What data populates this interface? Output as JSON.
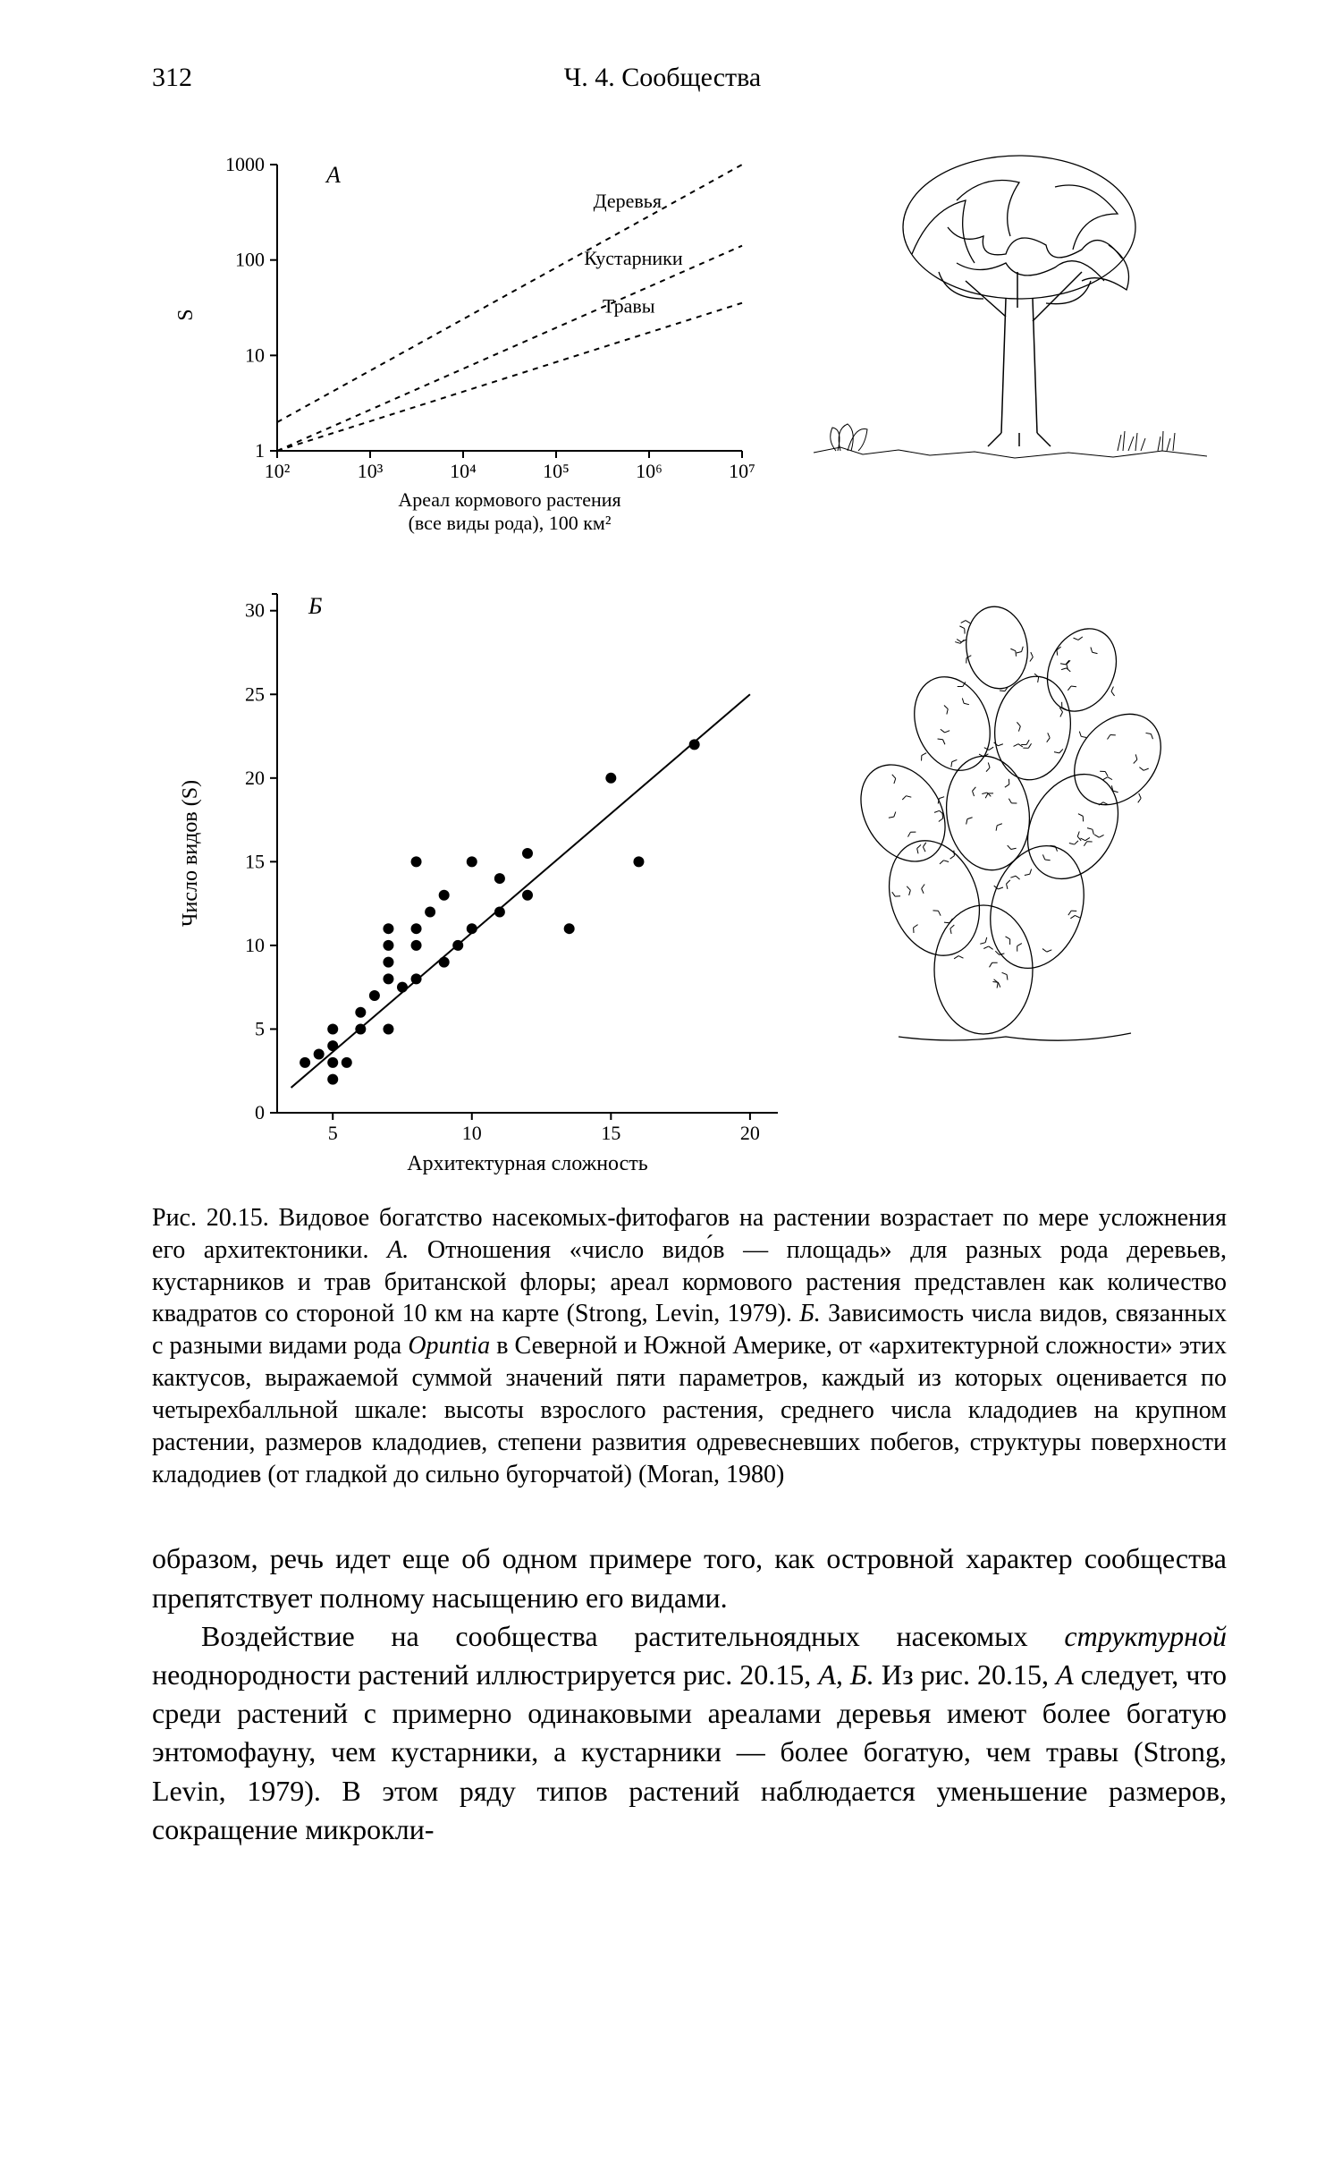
{
  "header": {
    "page_number": "312",
    "running_title": "Ч. 4. Сообщества"
  },
  "figure": {
    "panelA": {
      "type": "line-log-log",
      "letter": "А",
      "x_axis_label_line1": "Ареал кормового растения",
      "x_axis_label_line2": "(все виды рода), 100 км²",
      "y_axis_label": "S",
      "x_ticks": [
        "10²",
        "10³",
        "10⁴",
        "10⁵",
        "10⁶",
        "10⁷"
      ],
      "y_ticks": [
        "1",
        "10",
        "100",
        "1000"
      ],
      "x_range_log10": [
        2,
        7
      ],
      "y_range_log10": [
        0,
        3
      ],
      "series": [
        {
          "label": "Деревья",
          "dash": "6,6",
          "points_log10": [
            [
              2,
              0.3
            ],
            [
              7,
              3.0
            ]
          ],
          "label_xy_log10": [
            5.4,
            2.55
          ]
        },
        {
          "label": "Кустарники",
          "dash": "6,6",
          "points_log10": [
            [
              2,
              0.0
            ],
            [
              7,
              2.15
            ]
          ],
          "label_xy_log10": [
            5.3,
            1.95
          ]
        },
        {
          "label": "Травы",
          "dash": "6,6",
          "points_log10": [
            [
              2,
              0.0
            ],
            [
              7,
              1.55
            ]
          ],
          "label_xy_log10": [
            5.5,
            1.45
          ]
        }
      ],
      "line_color": "#000000",
      "line_width": 2
    },
    "panelB": {
      "type": "scatter-with-fit",
      "letter": "Б",
      "x_axis_label": "Архитектурная сложность",
      "y_axis_label": "Число видов (S)",
      "x_ticks": [
        "5",
        "10",
        "15",
        "20"
      ],
      "y_ticks": [
        "0",
        "5",
        "10",
        "15",
        "20",
        "25",
        "30"
      ],
      "x_range": [
        3,
        21
      ],
      "y_range": [
        0,
        31
      ],
      "fit_line": {
        "x1": 3.5,
        "y1": 1.5,
        "x2": 20,
        "y2": 25
      },
      "marker_color": "#000000",
      "marker_radius": 6,
      "line_color": "#000000",
      "line_width": 2,
      "points": [
        [
          4.0,
          3.0
        ],
        [
          4.5,
          3.5
        ],
        [
          5.0,
          2.0
        ],
        [
          5.0,
          3.0
        ],
        [
          5.0,
          4.0
        ],
        [
          5.0,
          5.0
        ],
        [
          5.5,
          3.0
        ],
        [
          6.0,
          5.0
        ],
        [
          6.0,
          6.0
        ],
        [
          6.5,
          7.0
        ],
        [
          7.0,
          5.0
        ],
        [
          7.0,
          8.0
        ],
        [
          7.0,
          9.0
        ],
        [
          7.0,
          10.0
        ],
        [
          7.0,
          11.0
        ],
        [
          7.5,
          7.5
        ],
        [
          8.0,
          8.0
        ],
        [
          8.0,
          10.0
        ],
        [
          8.0,
          11.0
        ],
        [
          8.0,
          15.0
        ],
        [
          8.5,
          12.0
        ],
        [
          9.0,
          9.0
        ],
        [
          9.0,
          13.0
        ],
        [
          9.5,
          10.0
        ],
        [
          10.0,
          11.0
        ],
        [
          10.0,
          15.0
        ],
        [
          11.0,
          12.0
        ],
        [
          11.0,
          14.0
        ],
        [
          12.0,
          13.0
        ],
        [
          12.0,
          15.5
        ],
        [
          13.5,
          11.0
        ],
        [
          15.0,
          20.0
        ],
        [
          16.0,
          15.0
        ],
        [
          18.0,
          22.0
        ]
      ]
    }
  },
  "caption": {
    "label": "Рис. 20.15.",
    "text_parts": [
      " Видовое богатство насекомых-фитофагов на растении возрастает по мере усложнения его архитектоники. ",
      "А.",
      " Отношения «число видо́в — площадь» для разных рода деревьев, кустарников и трав британской флоры; ареал кормового растения представлен как количество квадратов со стороной 10 км на карте (Strong, Levin, 1979). ",
      "Б.",
      " Зависимость числа видов, связанных с разными видами рода ",
      "Opuntia",
      " в Северной и Южной Америке, от «архитектурной сложности» этих кактусов, выражаемой суммой значений пяти параметров, каждый из которых оценивается по четырехбалльной шкале: высоты взрослого растения, среднего числа кладодиев на крупном растении, размеров кладодиев, степени развития одревесневших побегов, структуры поверхности кладодиев (от гладкой до сильно бугорчатой) (Moran, 1980)"
    ]
  },
  "body": {
    "para1": "образом, речь идет еще об одном примере того, как островной характер сообщества препятствует полному насыщению его видами.",
    "para2_parts": [
      "Воздействие на сообщества растительноядных насекомых ",
      "структурной",
      " неоднородности растений иллюстрируется рис. 20.15, ",
      "А, Б.",
      " Из рис. 20.15, ",
      "А",
      " следует, что среди растений с примерно одинаковыми ареалами деревья имеют более богатую энтомофауну, чем кустарники, а кустарники — более богатую, чем травы (Strong, Levin, 1979). В этом ряду типов растений наблюдается уменьшение размеров, сокращение микрокли-"
    ]
  },
  "colors": {
    "background": "#ffffff",
    "ink": "#000000"
  }
}
